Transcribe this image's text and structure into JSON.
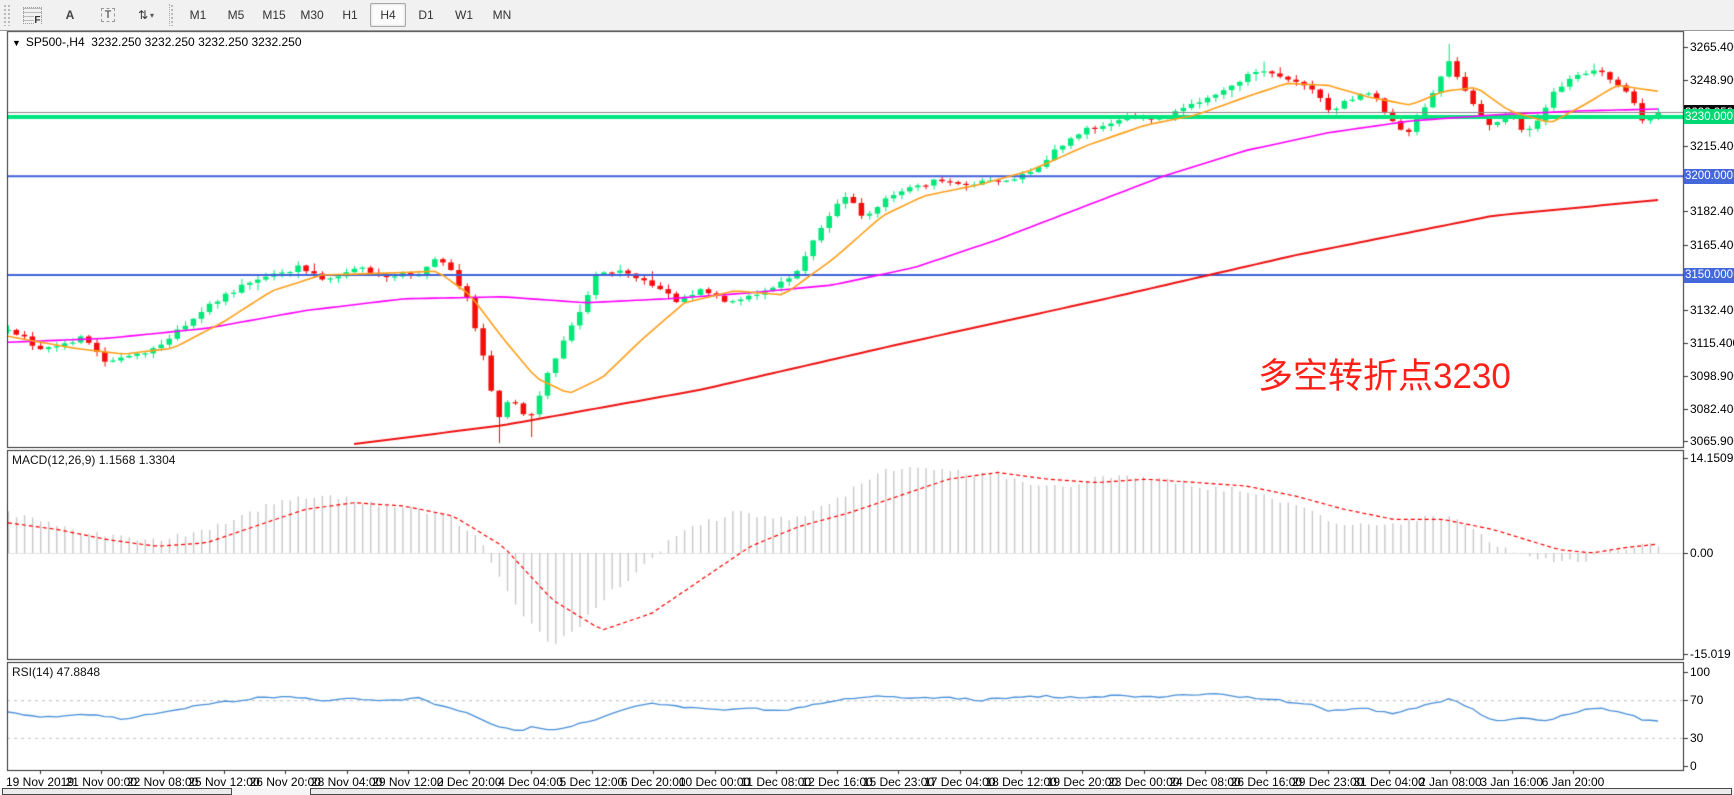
{
  "toolbar": {
    "tools": [
      {
        "name": "fibonacci-tool",
        "glyph": "F"
      },
      {
        "name": "text-tool",
        "glyph": "A"
      },
      {
        "name": "text-label-tool",
        "glyph": "T"
      },
      {
        "name": "arrows-tool",
        "glyph": "⇅"
      }
    ],
    "timeframes": [
      "M1",
      "M5",
      "M15",
      "M30",
      "H1",
      "H4",
      "D1",
      "W1",
      "MN"
    ],
    "active_timeframe": "H4"
  },
  "header": {
    "symbol": "SP500-,H4",
    "ohlc": "3232.250 3232.250 3232.250 3232.250",
    "dropdown_glyph": "▼"
  },
  "annotation": {
    "text": "多空转折点3230",
    "color": "#ff2017"
  },
  "panels": {
    "macd": {
      "title": "MACD(12,26,9) 1.1568 1.3304",
      "ticks": [
        {
          "v": 14.1509,
          "label": "14.1509"
        },
        {
          "v": 0,
          "label": "0.00"
        },
        {
          "v": -15.019,
          "label": "-15.019"
        }
      ]
    },
    "rsi": {
      "title": "RSI(14) 47.8848",
      "ticks": [
        {
          "v": 100,
          "label": "100"
        },
        {
          "v": 70,
          "label": "70"
        },
        {
          "v": 30,
          "label": "30"
        },
        {
          "v": 0,
          "label": "0"
        }
      ],
      "levels": [
        70,
        30
      ]
    }
  },
  "chart_data": {
    "type": "candlestick",
    "symbol": "SP500-",
    "timeframe": "H4",
    "last_quote": 3232.25,
    "bars": 206,
    "colors": {
      "up": "#00e97a",
      "down": "#f50d0d",
      "ma_orange": "#ff9f1a",
      "ma_magenta": "#ff00ff",
      "ma_red": "#ee1111",
      "macd_hist": "#c9c9c9",
      "macd_signal": "#ff0000",
      "rsi_line": "#4a90d9",
      "level_blue": "#3f62d9",
      "level_green": "#00e57e",
      "bid_gray": "#8a8a8a"
    },
    "price_axis": {
      "min": 3063.0,
      "max": 3273.5,
      "ticks": [
        3265.4,
        3248.9,
        3215.4,
        3182.4,
        3165.4,
        3132.4,
        3115.4,
        3098.9,
        3082.4,
        3065.9
      ],
      "tick_labels": [
        "3265.400",
        "3248.900",
        "3215.400",
        "3182.400",
        "3165.400",
        "3132.400",
        "3115.400",
        "3098.900",
        "3082.400",
        "3065.900"
      ]
    },
    "levels": [
      {
        "price": 3232.25,
        "label": "3232.250",
        "kind": "bid-line",
        "line_color": "#8a8a8a",
        "badge_bg": "#0a0a0a",
        "line_width": 1
      },
      {
        "price": 3230.0,
        "label": "3230.000",
        "kind": "hline",
        "line_color": "#00e57e",
        "badge_bg": "#00d973",
        "line_width": 4
      },
      {
        "price": 3200.0,
        "label": "3200.000",
        "kind": "hline",
        "line_color": "#3f62d9",
        "badge_bg": "#4467dc",
        "line_width": 2
      },
      {
        "price": 3150.0,
        "label": "3150.000",
        "kind": "hline",
        "line_color": "#3f62d9",
        "badge_bg": "#4467dc",
        "line_width": 2
      }
    ],
    "price_path": [
      [
        0,
        3122
      ],
      [
        0.022,
        3112
      ],
      [
        0.044,
        3118
      ],
      [
        0.059,
        3107
      ],
      [
        0.083,
        3110
      ],
      [
        0.101,
        3121
      ],
      [
        0.119,
        3134
      ],
      [
        0.138,
        3143
      ],
      [
        0.156,
        3150
      ],
      [
        0.177,
        3154
      ],
      [
        0.189,
        3148
      ],
      [
        0.201,
        3151
      ],
      [
        0.216,
        3154
      ],
      [
        0.228,
        3148
      ],
      [
        0.238,
        3151
      ],
      [
        0.25,
        3150
      ],
      [
        0.259,
        3158
      ],
      [
        0.268,
        3152
      ],
      [
        0.277,
        3141
      ],
      [
        0.285,
        3118
      ],
      [
        0.291,
        3098
      ],
      [
        0.297,
        3078
      ],
      [
        0.305,
        3090
      ],
      [
        0.315,
        3074
      ],
      [
        0.325,
        3096
      ],
      [
        0.336,
        3115
      ],
      [
        0.345,
        3130
      ],
      [
        0.356,
        3149
      ],
      [
        0.368,
        3152
      ],
      [
        0.383,
        3148
      ],
      [
        0.395,
        3142
      ],
      [
        0.407,
        3136
      ],
      [
        0.419,
        3143
      ],
      [
        0.435,
        3137
      ],
      [
        0.45,
        3140
      ],
      [
        0.465,
        3143
      ],
      [
        0.477,
        3152
      ],
      [
        0.489,
        3168
      ],
      [
        0.501,
        3184
      ],
      [
        0.51,
        3190
      ],
      [
        0.518,
        3179
      ],
      [
        0.528,
        3186
      ],
      [
        0.541,
        3192
      ],
      [
        0.553,
        3196
      ],
      [
        0.568,
        3198
      ],
      [
        0.58,
        3195
      ],
      [
        0.592,
        3199
      ],
      [
        0.607,
        3197
      ],
      [
        0.622,
        3204
      ],
      [
        0.638,
        3215
      ],
      [
        0.65,
        3222
      ],
      [
        0.665,
        3227
      ],
      [
        0.68,
        3230
      ],
      [
        0.695,
        3229
      ],
      [
        0.71,
        3233
      ],
      [
        0.728,
        3240
      ],
      [
        0.744,
        3248
      ],
      [
        0.759,
        3253
      ],
      [
        0.774,
        3248
      ],
      [
        0.789,
        3245
      ],
      [
        0.801,
        3233
      ],
      [
        0.813,
        3239
      ],
      [
        0.825,
        3242
      ],
      [
        0.838,
        3230
      ],
      [
        0.847,
        3221
      ],
      [
        0.859,
        3236
      ],
      [
        0.873,
        3259
      ],
      [
        0.881,
        3247
      ],
      [
        0.891,
        3230
      ],
      [
        0.899,
        3225
      ],
      [
        0.91,
        3232
      ],
      [
        0.919,
        3222
      ],
      [
        0.928,
        3230
      ],
      [
        0.939,
        3245
      ],
      [
        0.95,
        3251
      ],
      [
        0.96,
        3254
      ],
      [
        0.971,
        3249
      ],
      [
        0.982,
        3241
      ],
      [
        0.992,
        3227
      ],
      [
        1,
        3232.25
      ]
    ],
    "spikes": [
      {
        "f": 0.297,
        "low": 3065
      },
      {
        "f": 0.315,
        "low": 3068
      },
      {
        "f": 0.759,
        "high": 3258
      },
      {
        "f": 0.873,
        "high": 3267
      },
      {
        "f": 0.96,
        "high": 3257
      }
    ],
    "ma": {
      "orange": [
        [
          0,
          3119
        ],
        [
          0.04,
          3113
        ],
        [
          0.07,
          3110
        ],
        [
          0.1,
          3113
        ],
        [
          0.13,
          3126
        ],
        [
          0.16,
          3142
        ],
        [
          0.19,
          3150
        ],
        [
          0.23,
          3151
        ],
        [
          0.26,
          3152
        ],
        [
          0.28,
          3140
        ],
        [
          0.3,
          3118
        ],
        [
          0.32,
          3098
        ],
        [
          0.34,
          3090
        ],
        [
          0.36,
          3098
        ],
        [
          0.385,
          3118
        ],
        [
          0.41,
          3136
        ],
        [
          0.44,
          3142
        ],
        [
          0.47,
          3140
        ],
        [
          0.5,
          3158
        ],
        [
          0.53,
          3180
        ],
        [
          0.555,
          3190
        ],
        [
          0.59,
          3196
        ],
        [
          0.62,
          3203
        ],
        [
          0.655,
          3216
        ],
        [
          0.69,
          3226
        ],
        [
          0.72,
          3231
        ],
        [
          0.75,
          3240
        ],
        [
          0.775,
          3247
        ],
        [
          0.8,
          3246
        ],
        [
          0.825,
          3240
        ],
        [
          0.85,
          3236
        ],
        [
          0.87,
          3243
        ],
        [
          0.89,
          3245
        ],
        [
          0.91,
          3233
        ],
        [
          0.935,
          3227
        ],
        [
          0.955,
          3236
        ],
        [
          0.975,
          3246
        ],
        [
          1,
          3243
        ]
      ],
      "magenta": [
        [
          0,
          3116
        ],
        [
          0.06,
          3118
        ],
        [
          0.12,
          3123
        ],
        [
          0.18,
          3132
        ],
        [
          0.24,
          3138
        ],
        [
          0.3,
          3139
        ],
        [
          0.35,
          3136
        ],
        [
          0.4,
          3138
        ],
        [
          0.45,
          3141
        ],
        [
          0.5,
          3145
        ],
        [
          0.55,
          3154
        ],
        [
          0.6,
          3168
        ],
        [
          0.65,
          3184
        ],
        [
          0.7,
          3200
        ],
        [
          0.75,
          3213
        ],
        [
          0.8,
          3222
        ],
        [
          0.85,
          3228
        ],
        [
          0.9,
          3231
        ],
        [
          0.95,
          3233
        ],
        [
          1,
          3234
        ]
      ],
      "red": {
        "start_f": 0.205,
        "anchors": [
          [
            0.205,
            3064
          ],
          [
            0.3,
            3074
          ],
          [
            0.42,
            3092
          ],
          [
            0.54,
            3115
          ],
          [
            0.66,
            3137
          ],
          [
            0.78,
            3160
          ],
          [
            0.9,
            3180
          ],
          [
            1,
            3188
          ]
        ]
      }
    },
    "macd": {
      "current": "1.1568 1.3304",
      "hist": [
        [
          0,
          6
        ],
        [
          0.03,
          4
        ],
        [
          0.06,
          2.5
        ],
        [
          0.09,
          2
        ],
        [
          0.12,
          3.5
        ],
        [
          0.15,
          6.5
        ],
        [
          0.17,
          8
        ],
        [
          0.19,
          8.5
        ],
        [
          0.22,
          7.5
        ],
        [
          0.25,
          6.5
        ],
        [
          0.27,
          5
        ],
        [
          0.285,
          2
        ],
        [
          0.3,
          -5
        ],
        [
          0.315,
          -10
        ],
        [
          0.33,
          -13.5
        ],
        [
          0.345,
          -11
        ],
        [
          0.36,
          -7
        ],
        [
          0.38,
          -3
        ],
        [
          0.4,
          1.5
        ],
        [
          0.42,
          4.5
        ],
        [
          0.44,
          6
        ],
        [
          0.46,
          5.5
        ],
        [
          0.48,
          5
        ],
        [
          0.5,
          7.5
        ],
        [
          0.52,
          11
        ],
        [
          0.54,
          13
        ],
        [
          0.56,
          12.5
        ],
        [
          0.58,
          12
        ],
        [
          0.6,
          11.5
        ],
        [
          0.62,
          10.5
        ],
        [
          0.64,
          10
        ],
        [
          0.66,
          11
        ],
        [
          0.68,
          11.5
        ],
        [
          0.7,
          11
        ],
        [
          0.72,
          10
        ],
        [
          0.74,
          9.5
        ],
        [
          0.76,
          9
        ],
        [
          0.78,
          7
        ],
        [
          0.8,
          5
        ],
        [
          0.82,
          4
        ],
        [
          0.84,
          4.5
        ],
        [
          0.86,
          5.5
        ],
        [
          0.875,
          5
        ],
        [
          0.89,
          3
        ],
        [
          0.9,
          1.5
        ],
        [
          0.92,
          -0.5
        ],
        [
          0.94,
          -1.5
        ],
        [
          0.955,
          -1
        ],
        [
          0.97,
          0.5
        ],
        [
          0.985,
          1
        ],
        [
          1,
          1.16
        ]
      ],
      "signal": [
        [
          0,
          4.5
        ],
        [
          0.03,
          3.5
        ],
        [
          0.06,
          2
        ],
        [
          0.09,
          1
        ],
        [
          0.12,
          1.5
        ],
        [
          0.15,
          4
        ],
        [
          0.18,
          6.5
        ],
        [
          0.21,
          7.5
        ],
        [
          0.24,
          7
        ],
        [
          0.27,
          5.5
        ],
        [
          0.3,
          1
        ],
        [
          0.33,
          -7
        ],
        [
          0.36,
          -11.5
        ],
        [
          0.39,
          -9
        ],
        [
          0.42,
          -4
        ],
        [
          0.45,
          1
        ],
        [
          0.48,
          4
        ],
        [
          0.51,
          6
        ],
        [
          0.54,
          8.5
        ],
        [
          0.57,
          11
        ],
        [
          0.6,
          12
        ],
        [
          0.63,
          11
        ],
        [
          0.66,
          10.5
        ],
        [
          0.69,
          11
        ],
        [
          0.72,
          10.5
        ],
        [
          0.75,
          10
        ],
        [
          0.78,
          8.5
        ],
        [
          0.81,
          6.5
        ],
        [
          0.84,
          5
        ],
        [
          0.87,
          5
        ],
        [
          0.9,
          3.5
        ],
        [
          0.92,
          2
        ],
        [
          0.94,
          0.5
        ],
        [
          0.96,
          0
        ],
        [
          0.98,
          0.8
        ],
        [
          1,
          1.33
        ]
      ]
    },
    "rsi": {
      "current": 47.8848,
      "points": [
        [
          0,
          58
        ],
        [
          0.02,
          52
        ],
        [
          0.05,
          55
        ],
        [
          0.07,
          50
        ],
        [
          0.1,
          60
        ],
        [
          0.13,
          68
        ],
        [
          0.15,
          72
        ],
        [
          0.17,
          74
        ],
        [
          0.19,
          70
        ],
        [
          0.21,
          72
        ],
        [
          0.23,
          69
        ],
        [
          0.25,
          72
        ],
        [
          0.26,
          65
        ],
        [
          0.28,
          55
        ],
        [
          0.295,
          42
        ],
        [
          0.31,
          38
        ],
        [
          0.32,
          42
        ],
        [
          0.33,
          37
        ],
        [
          0.345,
          45
        ],
        [
          0.36,
          52
        ],
        [
          0.375,
          62
        ],
        [
          0.39,
          66
        ],
        [
          0.41,
          63
        ],
        [
          0.43,
          60
        ],
        [
          0.45,
          62
        ],
        [
          0.47,
          58
        ],
        [
          0.49,
          66
        ],
        [
          0.51,
          72
        ],
        [
          0.53,
          74
        ],
        [
          0.55,
          72
        ],
        [
          0.57,
          73
        ],
        [
          0.59,
          70
        ],
        [
          0.61,
          73
        ],
        [
          0.63,
          74
        ],
        [
          0.65,
          73
        ],
        [
          0.67,
          75
        ],
        [
          0.69,
          73
        ],
        [
          0.71,
          75
        ],
        [
          0.73,
          77
        ],
        [
          0.75,
          73
        ],
        [
          0.77,
          70
        ],
        [
          0.79,
          65
        ],
        [
          0.8,
          58
        ],
        [
          0.82,
          62
        ],
        [
          0.84,
          55
        ],
        [
          0.86,
          65
        ],
        [
          0.875,
          72
        ],
        [
          0.89,
          58
        ],
        [
          0.9,
          48
        ],
        [
          0.92,
          52
        ],
        [
          0.93,
          47
        ],
        [
          0.945,
          55
        ],
        [
          0.96,
          62
        ],
        [
          0.975,
          58
        ],
        [
          0.99,
          50
        ],
        [
          1,
          47.9
        ]
      ]
    },
    "time_labels": [
      "19 Nov 2019",
      "21 Nov 00:00",
      "22 Nov 08:00",
      "25 Nov 12:00",
      "26 Nov 20:00",
      "28 Nov 04:00",
      "29 Nov 12:00",
      "2 Dec 20:00",
      "4 Dec 04:00",
      "5 Dec 12:00",
      "6 Dec 20:00",
      "10 Dec 00:00",
      "11 Dec 08:00",
      "12 Dec 16:00",
      "15 Dec 23:00",
      "17 Dec 04:00",
      "18 Dec 12:00",
      "19 Dec 20:00",
      "23 Dec 00:00",
      "24 Dec 08:00",
      "26 Dec 16:00",
      "29 Dec 23:00",
      "31 Dec 04:00",
      "2 Jan 08:00",
      "3 Jan 16:00",
      "6 Jan 20:00"
    ]
  }
}
